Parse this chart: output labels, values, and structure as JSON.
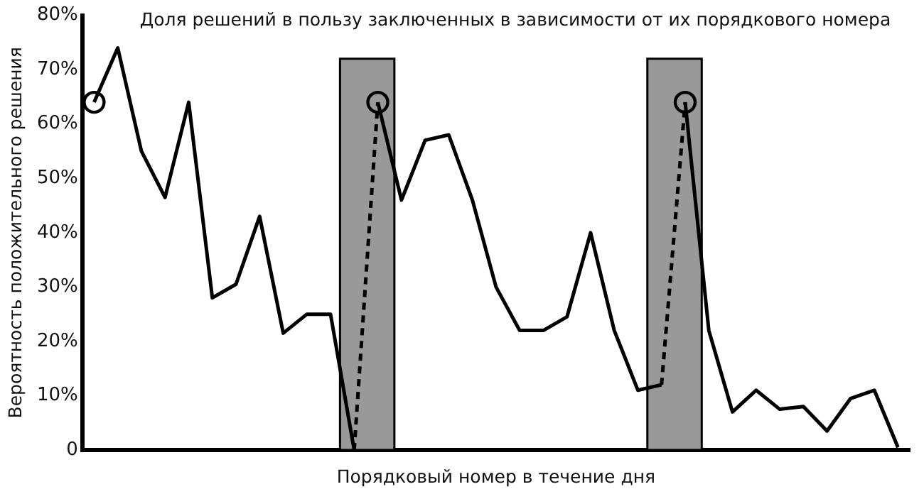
{
  "chart_data": {
    "type": "line",
    "title": "Доля решений в пользу заключенных в зависимости от их порядкового номера",
    "xlabel": "Порядковый номер в течение дня",
    "ylabel": "Вероятность положительного решения",
    "categories": [
      null,
      null,
      null,
      null,
      null,
      null,
      null,
      null,
      null,
      null,
      null,
      null,
      null,
      null,
      null,
      null,
      null,
      null,
      null,
      null,
      null,
      null,
      null,
      null,
      null,
      null,
      null,
      null,
      null,
      null,
      null,
      null,
      null,
      null,
      null
    ],
    "ylim": [
      0,
      80
    ],
    "yticks": [
      {
        "value": 0,
        "label": "0"
      },
      {
        "value": 10,
        "label": "10%"
      },
      {
        "value": 20,
        "label": "20%"
      },
      {
        "value": 30,
        "label": "30%"
      },
      {
        "value": 40,
        "label": "40%"
      },
      {
        "value": 50,
        "label": "50%"
      },
      {
        "value": 60,
        "label": "60%"
      },
      {
        "value": 70,
        "label": "70%"
      },
      {
        "value": 80,
        "label": "80%"
      }
    ],
    "tick_labels": "y",
    "grid": false,
    "legend": false,
    "marker": "none",
    "series": [
      {
        "color": "#000000",
        "line_style": "solid",
        "values": [
          64,
          74,
          55,
          46.5,
          64,
          28,
          30.5,
          43,
          21.5,
          25,
          25,
          0,
          null,
          null,
          null,
          null,
          null,
          null,
          null,
          null,
          null,
          null,
          null,
          null,
          null,
          null,
          null,
          null,
          null,
          null,
          null,
          null,
          null,
          null,
          null
        ]
      },
      {
        "color": "#000000",
        "line_style": "dashed",
        "values": [
          null,
          null,
          null,
          null,
          null,
          null,
          null,
          null,
          null,
          null,
          null,
          0,
          64,
          null,
          null,
          null,
          null,
          null,
          null,
          null,
          null,
          null,
          null,
          null,
          null,
          null,
          null,
          null,
          null,
          null,
          null,
          null,
          null,
          null,
          null
        ]
      },
      {
        "color": "#000000",
        "line_style": "solid",
        "values": [
          null,
          null,
          null,
          null,
          null,
          null,
          null,
          null,
          null,
          null,
          null,
          null,
          64,
          46,
          57,
          58,
          46,
          30,
          22,
          22,
          24.5,
          40,
          22,
          11,
          12,
          null,
          null,
          null,
          null,
          null,
          null,
          null,
          null,
          null,
          null
        ]
      },
      {
        "color": "#000000",
        "line_style": "dashed",
        "values": [
          null,
          null,
          null,
          null,
          null,
          null,
          null,
          null,
          null,
          null,
          null,
          null,
          null,
          null,
          null,
          null,
          null,
          null,
          null,
          null,
          null,
          null,
          null,
          null,
          12,
          64,
          null,
          null,
          null,
          null,
          null,
          null,
          null,
          null,
          null
        ]
      },
      {
        "color": "#000000",
        "line_style": "solid",
        "values": [
          null,
          null,
          null,
          null,
          null,
          null,
          null,
          null,
          null,
          null,
          null,
          null,
          null,
          null,
          null,
          null,
          null,
          null,
          null,
          null,
          null,
          null,
          null,
          null,
          null,
          64,
          22,
          7,
          11,
          7.5,
          8,
          3.5,
          9.5,
          11,
          0.5
        ]
      },
      {
        "type": "scatter",
        "color": "#000000",
        "marker": "circle",
        "values": [
          64,
          null,
          null,
          null,
          null,
          null,
          null,
          null,
          null,
          null,
          null,
          null,
          64,
          null,
          null,
          null,
          null,
          null,
          null,
          null,
          null,
          null,
          null,
          null,
          null,
          64,
          null,
          null,
          null,
          null,
          null,
          null,
          null,
          null,
          null
        ]
      }
    ]
  }
}
